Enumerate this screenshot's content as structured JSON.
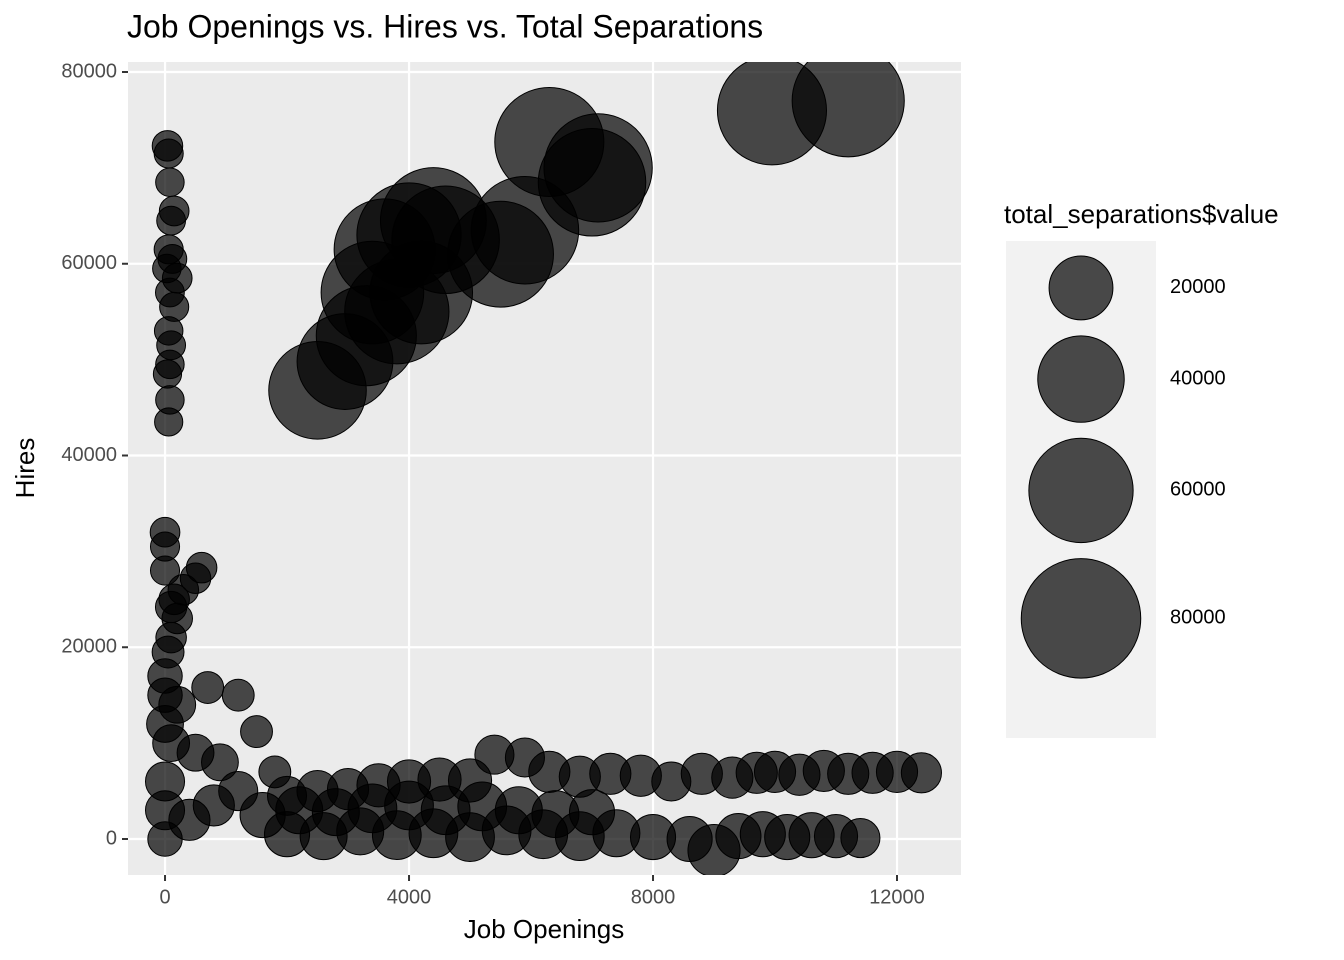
{
  "chart_data": {
    "type": "bubble",
    "title": "Job Openings vs. Hires vs. Total Separations",
    "x_label": "Job Openings",
    "y_label": "Hires",
    "xlim": [
      -607,
      13049
    ],
    "ylim": [
      -3755,
      81043
    ],
    "xticks": [
      0,
      4000,
      8000,
      12000
    ],
    "yticks": [
      0,
      20000,
      40000,
      60000,
      80000
    ],
    "grid": true,
    "color": "#000000",
    "size_legend": {
      "title": "total_separations$value",
      "values": [
        20000,
        40000,
        60000,
        80000
      ]
    },
    "x": [
      40,
      60,
      80,
      150,
      100,
      60,
      120,
      30,
      200,
      80,
      150,
      60,
      100,
      80,
      40,
      80,
      60,
      2500,
      2950,
      3300,
      3400,
      3600,
      3800,
      4000,
      4200,
      4400,
      4600,
      5500,
      5900,
      6300,
      7000,
      7100,
      9950,
      11200,
      0,
      0,
      0,
      600,
      500,
      300,
      150,
      100,
      200,
      100,
      50,
      0,
      0,
      200,
      700,
      1200,
      1500,
      0,
      100,
      500,
      900,
      1800,
      0,
      0,
      0,
      400,
      800,
      1200,
      2000,
      2500,
      3000,
      3500,
      4000,
      4500,
      5000,
      5400,
      5900,
      6300,
      6800,
      7300,
      7800,
      8300,
      8800,
      9300,
      9700,
      10000,
      10400,
      10800,
      11200,
      11600,
      12000,
      12400,
      2000,
      2600,
      3200,
      3800,
      4400,
      5000,
      5600,
      6200,
      6800,
      7400,
      8000,
      8600,
      9000,
      9400,
      9800,
      10200,
      10600,
      11000,
      11400,
      1600,
      2200,
      2800,
      3400,
      4000,
      4600,
      5200,
      5800,
      6400,
      7000
    ],
    "y": [
      72300,
      71500,
      68500,
      65500,
      64500,
      61500,
      60500,
      59500,
      58500,
      57000,
      55500,
      53000,
      51500,
      49500,
      48500,
      45800,
      43500,
      46800,
      49800,
      52500,
      57000,
      61500,
      55000,
      63000,
      57000,
      64500,
      62500,
      61000,
      63500,
      72700,
      68500,
      70000,
      76000,
      77000,
      32000,
      30500,
      28000,
      28300,
      27200,
      26000,
      25000,
      24200,
      23000,
      21000,
      19500,
      17000,
      15000,
      14000,
      15800,
      15000,
      11200,
      12000,
      10000,
      9000,
      8000,
      7000,
      6000,
      3000,
      0,
      2000,
      3500,
      5000,
      4500,
      5000,
      5200,
      5600,
      6000,
      6200,
      6100,
      8800,
      8500,
      7000,
      6500,
      6800,
      6600,
      6000,
      6800,
      6400,
      6900,
      7000,
      6700,
      7100,
      6800,
      6900,
      7000,
      6900,
      500,
      300,
      800,
      400,
      600,
      200,
      900,
      500,
      300,
      600,
      200,
      0,
      -1200,
      300,
      500,
      200,
      400,
      300,
      100,
      2500,
      3000,
      2800,
      3200,
      3500,
      3000,
      3400,
      3000,
      2600,
      2800
    ],
    "size": [
      1500,
      1000,
      800,
      1200,
      900,
      1000,
      900,
      800,
      1200,
      900,
      1000,
      800,
      900,
      800,
      700,
      800,
      700,
      52000,
      50000,
      55000,
      58000,
      56000,
      60000,
      60000,
      58000,
      62000,
      64000,
      62000,
      64000,
      66000,
      64000,
      65000,
      66000,
      70000,
      1200,
      1000,
      1000,
      1500,
      1500,
      1500,
      1500,
      1800,
      1500,
      1500,
      2000,
      3000,
      3000,
      4000,
      2000,
      2000,
      2000,
      4000,
      4000,
      4000,
      4000,
      2000,
      5000,
      5000,
      3000,
      6000,
      6000,
      5000,
      5000,
      6000,
      6000,
      7000,
      7000,
      7000,
      7000,
      5000,
      5000,
      6000,
      6000,
      6000,
      6000,
      5000,
      6000,
      6000,
      6000,
      6000,
      6000,
      6000,
      6000,
      6000,
      6000,
      5500,
      8000,
      9000,
      9000,
      10000,
      10000,
      10000,
      10000,
      10000,
      10000,
      9000,
      8000,
      8000,
      12000,
      8000,
      8000,
      8000,
      8000,
      7000,
      5000,
      8000,
      9000,
      9000,
      10000,
      10000,
      10000,
      10000,
      9000,
      9000,
      8000
    ]
  }
}
